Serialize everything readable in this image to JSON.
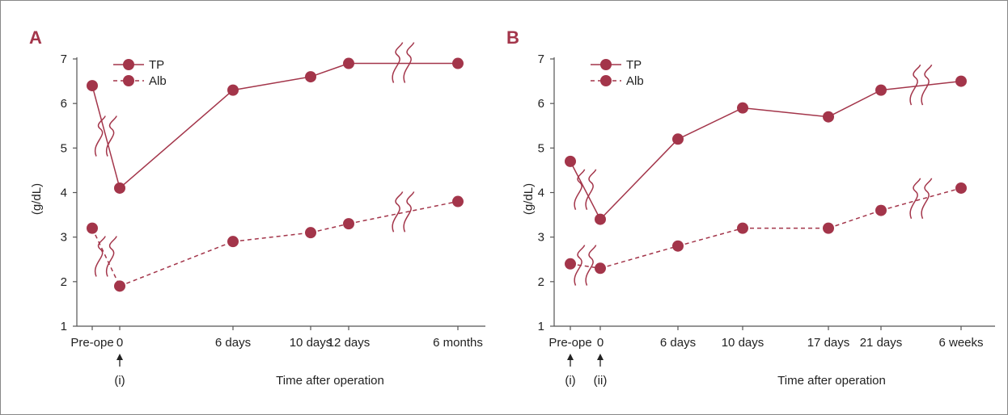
{
  "colors": {
    "series": "#a3354a",
    "axis": "#555555",
    "frame": "#888888",
    "text": "#222222"
  },
  "chart_data": [
    {
      "type": "line",
      "panel": "A",
      "xlabel": "Time after operation",
      "ylabel": "(g/dL)",
      "ylim": [
        1,
        7
      ],
      "yticks": [
        "1",
        "2",
        "3",
        "4",
        "5",
        "6",
        "7"
      ],
      "categories": [
        "Pre-ope",
        "0",
        "6 days",
        "10 days",
        "12 days",
        "6 months"
      ],
      "annotations": [
        {
          "category": "0",
          "arrow_label": "(i)"
        }
      ],
      "legend": {
        "position": "top-left",
        "entries": [
          "TP",
          "Alb"
        ]
      },
      "series": [
        {
          "name": "TP",
          "style": "solid",
          "values": [
            6.4,
            4.1,
            6.3,
            6.6,
            6.9,
            6.9
          ],
          "breaks_after_index": [
            0,
            4
          ]
        },
        {
          "name": "Alb",
          "style": "dashed",
          "values": [
            3.2,
            1.9,
            2.9,
            3.1,
            3.3,
            3.8
          ],
          "breaks_after_index": [
            0,
            4
          ]
        }
      ]
    },
    {
      "type": "line",
      "panel": "B",
      "xlabel": "Time after operation",
      "ylabel": "(g/dL)",
      "ylim": [
        1,
        7
      ],
      "yticks": [
        "1",
        "2",
        "3",
        "4",
        "5",
        "6",
        "7"
      ],
      "categories": [
        "Pre-ope",
        "0",
        "6 days",
        "10 days",
        "17 days",
        "21 days",
        "6 weeks"
      ],
      "annotations": [
        {
          "category": "Pre-ope",
          "arrow_label": "(i)"
        },
        {
          "category": "0",
          "arrow_label": "(ii)"
        }
      ],
      "legend": {
        "position": "top-left",
        "entries": [
          "TP",
          "Alb"
        ]
      },
      "series": [
        {
          "name": "TP",
          "style": "solid",
          "values": [
            4.7,
            3.4,
            5.2,
            5.9,
            5.7,
            6.3,
            6.5
          ],
          "breaks_after_index": [
            0,
            5
          ]
        },
        {
          "name": "Alb",
          "style": "dashed",
          "values": [
            2.4,
            2.3,
            2.8,
            3.2,
            3.2,
            3.6,
            4.1
          ],
          "breaks_after_index": [
            0,
            5
          ]
        }
      ]
    }
  ]
}
